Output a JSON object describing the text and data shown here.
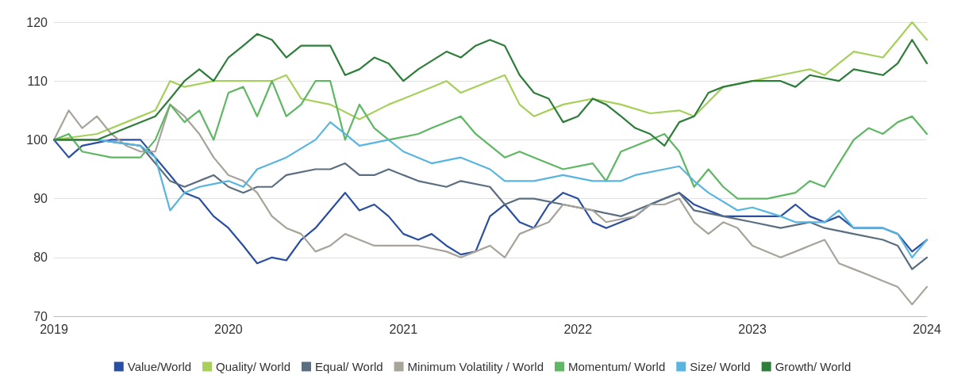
{
  "chart_data": {
    "type": "line",
    "xlim": [
      "2019",
      "2024"
    ],
    "xticks": [
      "2019",
      "2020",
      "2021",
      "2022",
      "2023",
      "2024"
    ],
    "ylim": [
      70,
      120
    ],
    "yticks": [
      70,
      80,
      90,
      100,
      110,
      120
    ],
    "grid": "y",
    "legend": "bottom",
    "marker": "none",
    "line_style": "solid",
    "series": [
      {
        "name": "Value/World",
        "color": "#2b4fa0",
        "x": [
          "2019-01",
          "2019-02",
          "2019-03",
          "2019-05",
          "2019-07",
          "2019-08",
          "2019-09",
          "2019-10",
          "2019-11",
          "2019-12",
          "2020-01",
          "2020-02",
          "2020-03",
          "2020-04",
          "2020-05",
          "2020-06",
          "2020-07",
          "2020-08",
          "2020-09",
          "2020-10",
          "2020-11",
          "2020-12",
          "2021-01",
          "2021-02",
          "2021-03",
          "2021-04",
          "2021-05",
          "2021-06",
          "2021-07",
          "2021-08",
          "2021-09",
          "2021-10",
          "2021-11",
          "2021-12",
          "2022-01",
          "2022-02",
          "2022-03",
          "2022-04",
          "2022-05",
          "2022-06",
          "2022-07",
          "2022-08",
          "2022-09",
          "2022-10",
          "2022-11",
          "2023-01",
          "2023-03",
          "2023-04",
          "2023-05",
          "2023-06",
          "2023-07",
          "2023-08",
          "2023-09",
          "2023-10",
          "2023-11",
          "2023-12",
          "2024-01"
        ],
        "values": [
          100,
          97,
          99,
          100,
          100,
          97,
          94,
          91,
          90,
          87,
          85,
          82,
          79,
          80,
          79.5,
          83,
          85,
          88,
          91,
          88,
          89,
          87,
          84,
          83,
          84,
          82,
          80.5,
          81,
          87,
          89,
          86,
          85,
          89,
          91,
          90,
          86,
          85,
          86,
          87,
          89,
          90,
          91,
          89,
          88,
          87,
          87,
          87,
          89,
          87,
          86,
          87,
          85,
          85,
          85,
          84,
          81,
          83
        ]
      },
      {
        "name": "Quality/ World",
        "color": "#a6d05a",
        "x": [
          "2019-01",
          "2019-04",
          "2019-06",
          "2019-08",
          "2019-09",
          "2019-10",
          "2019-12",
          "2020-02",
          "2020-04",
          "2020-05",
          "2020-06",
          "2020-08",
          "2020-10",
          "2020-12",
          "2021-02",
          "2021-04",
          "2021-05",
          "2021-07",
          "2021-08",
          "2021-09",
          "2021-10",
          "2021-12",
          "2022-02",
          "2022-04",
          "2022-06",
          "2022-08",
          "2022-09",
          "2022-11",
          "2023-01",
          "2023-03",
          "2023-05",
          "2023-06",
          "2023-07",
          "2023-08",
          "2023-10",
          "2023-11",
          "2023-12",
          "2024-01"
        ],
        "values": [
          100,
          101,
          103,
          105,
          110,
          109,
          110,
          110,
          110,
          111,
          107,
          106,
          103.5,
          106,
          108,
          110,
          108,
          110,
          111,
          106,
          104,
          106,
          107,
          106,
          104.5,
          105,
          104,
          109,
          110,
          111,
          112,
          111,
          113,
          115,
          114,
          117,
          120,
          117
        ]
      },
      {
        "name": "Equal/ World",
        "color": "#5a6e80",
        "x": [
          "2019-01",
          "2019-04",
          "2019-07",
          "2019-08",
          "2019-09",
          "2019-10",
          "2019-12",
          "2020-01",
          "2020-02",
          "2020-03",
          "2020-04",
          "2020-05",
          "2020-07",
          "2020-08",
          "2020-09",
          "2020-10",
          "2020-11",
          "2020-12",
          "2021-02",
          "2021-04",
          "2021-05",
          "2021-07",
          "2021-08",
          "2021-09",
          "2021-10",
          "2021-12",
          "2022-02",
          "2022-04",
          "2022-06",
          "2022-07",
          "2022-08",
          "2022-09",
          "2022-11",
          "2023-01",
          "2023-03",
          "2023-05",
          "2023-06",
          "2023-08",
          "2023-10",
          "2023-11",
          "2023-12",
          "2024-01"
        ],
        "values": [
          100,
          100,
          99,
          96,
          93,
          92,
          94,
          92,
          91,
          92,
          92,
          94,
          95,
          95,
          96,
          94,
          94,
          95,
          93,
          92,
          93,
          92,
          89,
          90,
          90,
          89,
          88,
          87,
          89,
          90,
          91,
          88,
          87,
          86,
          85,
          86,
          85,
          84,
          83,
          82,
          78,
          80
        ]
      },
      {
        "name": "Minimum Volatility / World",
        "color": "#a8a39b",
        "x": [
          "2019-01",
          "2019-02",
          "2019-03",
          "2019-04",
          "2019-05",
          "2019-06",
          "2019-07",
          "2019-08",
          "2019-09",
          "2019-10",
          "2019-11",
          "2019-12",
          "2020-01",
          "2020-02",
          "2020-03",
          "2020-04",
          "2020-05",
          "2020-06",
          "2020-07",
          "2020-08",
          "2020-09",
          "2020-10",
          "2020-11",
          "2020-12",
          "2021-02",
          "2021-04",
          "2021-05",
          "2021-06",
          "2021-07",
          "2021-08",
          "2021-09",
          "2021-10",
          "2021-11",
          "2021-12",
          "2022-02",
          "2022-03",
          "2022-05",
          "2022-06",
          "2022-07",
          "2022-08",
          "2022-09",
          "2022-10",
          "2022-11",
          "2022-12",
          "2023-01",
          "2023-03",
          "2023-04",
          "2023-05",
          "2023-06",
          "2023-07",
          "2023-08",
          "2023-09",
          "2023-10",
          "2023-11",
          "2023-12",
          "2024-01"
        ],
        "values": [
          100,
          105,
          102,
          104,
          101,
          99,
          98,
          98,
          106,
          104,
          101,
          97,
          94,
          93,
          91,
          87,
          85,
          84,
          81,
          82,
          84,
          83,
          82,
          82,
          82,
          81,
          80,
          81,
          82,
          80,
          84,
          85,
          86,
          89,
          88,
          86,
          87,
          89,
          89,
          90,
          86,
          84,
          86,
          85,
          82,
          80,
          81,
          82,
          83,
          79,
          78,
          77,
          76,
          75,
          72,
          75
        ]
      },
      {
        "name": "Momentum/ World",
        "color": "#5fb763",
        "x": [
          "2019-01",
          "2019-02",
          "2019-03",
          "2019-05",
          "2019-07",
          "2019-08",
          "2019-09",
          "2019-10",
          "2019-11",
          "2019-12",
          "2020-01",
          "2020-02",
          "2020-03",
          "2020-04",
          "2020-05",
          "2020-06",
          "2020-07",
          "2020-08",
          "2020-09",
          "2020-10",
          "2020-11",
          "2020-12",
          "2021-02",
          "2021-03",
          "2021-05",
          "2021-06",
          "2021-08",
          "2021-09",
          "2021-10",
          "2021-12",
          "2022-02",
          "2022-03",
          "2022-04",
          "2022-06",
          "2022-07",
          "2022-08",
          "2022-09",
          "2022-10",
          "2022-11",
          "2022-12",
          "2023-02",
          "2023-04",
          "2023-05",
          "2023-06",
          "2023-07",
          "2023-08",
          "2023-09",
          "2023-10",
          "2023-11",
          "2023-12",
          "2024-01"
        ],
        "values": [
          100,
          101,
          98,
          97,
          97,
          100,
          106,
          103,
          105,
          100,
          108,
          109,
          104,
          110,
          104,
          106,
          110,
          110,
          100,
          106,
          102,
          100,
          101,
          102,
          104,
          101,
          97,
          98,
          97,
          95,
          96,
          93,
          98,
          100,
          101,
          98,
          92,
          95,
          92,
          90,
          90,
          91,
          93,
          92,
          96,
          100,
          102,
          101,
          103,
          104,
          101
        ]
      },
      {
        "name": "Size/ World",
        "color": "#57b5e0",
        "x": [
          "2019-01",
          "2019-04",
          "2019-07",
          "2019-08",
          "2019-09",
          "2019-10",
          "2019-11",
          "2020-01",
          "2020-02",
          "2020-03",
          "2020-05",
          "2020-07",
          "2020-08",
          "2020-09",
          "2020-10",
          "2020-12",
          "2021-01",
          "2021-03",
          "2021-05",
          "2021-07",
          "2021-08",
          "2021-10",
          "2021-12",
          "2022-02",
          "2022-04",
          "2022-05",
          "2022-07",
          "2022-08",
          "2022-09",
          "2022-10",
          "2022-12",
          "2023-01",
          "2023-03",
          "2023-04",
          "2023-06",
          "2023-07",
          "2023-08",
          "2023-10",
          "2023-11",
          "2023-12",
          "2024-01"
        ],
        "values": [
          100,
          100,
          99,
          97,
          88,
          91,
          92,
          93,
          92,
          95,
          97,
          100,
          103,
          101,
          99,
          100,
          98,
          96,
          97,
          95,
          93,
          93,
          94,
          93,
          93,
          94,
          95,
          95.5,
          93,
          91,
          88,
          88.5,
          87,
          86,
          86,
          88,
          85,
          85,
          84,
          80,
          83
        ]
      },
      {
        "name": "Growth/ World",
        "color": "#2e7d3a",
        "x": [
          "2019-01",
          "2019-04",
          "2019-06",
          "2019-08",
          "2019-09",
          "2019-10",
          "2019-11",
          "2019-12",
          "2020-01",
          "2020-02",
          "2020-03",
          "2020-04",
          "2020-05",
          "2020-06",
          "2020-08",
          "2020-09",
          "2020-10",
          "2020-11",
          "2020-12",
          "2021-01",
          "2021-02",
          "2021-04",
          "2021-05",
          "2021-06",
          "2021-07",
          "2021-08",
          "2021-09",
          "2021-10",
          "2021-11",
          "2021-12",
          "2022-01",
          "2022-02",
          "2022-03",
          "2022-04",
          "2022-05",
          "2022-06",
          "2022-07",
          "2022-08",
          "2022-09",
          "2022-10",
          "2022-11",
          "2023-01",
          "2023-03",
          "2023-04",
          "2023-05",
          "2023-07",
          "2023-08",
          "2023-10",
          "2023-11",
          "2023-12",
          "2024-01"
        ],
        "values": [
          100,
          100,
          102,
          104,
          107,
          110,
          112,
          110,
          114,
          116,
          118,
          117,
          114,
          116,
          116,
          111,
          112,
          114,
          113,
          110,
          112,
          115,
          114,
          116,
          117,
          116,
          111,
          108,
          107,
          103,
          104,
          107,
          106,
          104,
          102,
          101,
          99,
          103,
          104,
          108,
          109,
          110,
          110,
          109,
          111,
          110,
          112,
          111,
          113,
          117,
          113
        ]
      }
    ]
  }
}
